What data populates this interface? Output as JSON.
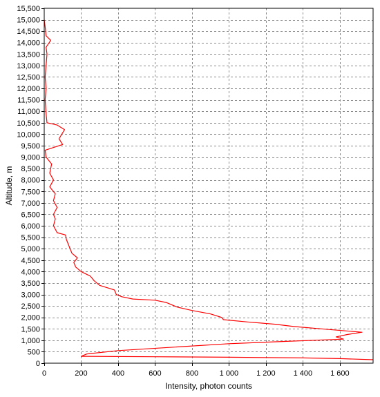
{
  "chart_data": {
    "type": "line",
    "title": "",
    "xlabel": "Intensity, photon counts",
    "ylabel": "Altitude, m",
    "xlim": [
      0,
      1780
    ],
    "ylim": [
      0,
      15500
    ],
    "x_ticks": [
      0,
      200,
      400,
      600,
      800,
      1000,
      1200,
      1400,
      1600
    ],
    "x_tick_labels": [
      "0",
      "200",
      "400",
      "600",
      "800",
      "1 000",
      "1 200",
      "1 400",
      "1 600"
    ],
    "y_ticks": [
      0,
      500,
      1000,
      1500,
      2000,
      2500,
      3000,
      3500,
      4000,
      4500,
      5000,
      5500,
      6000,
      6500,
      7000,
      7500,
      8000,
      8500,
      9000,
      9500,
      10000,
      10500,
      11000,
      11500,
      12000,
      12500,
      13000,
      13500,
      14000,
      14500,
      15000,
      15500
    ],
    "y_tick_labels": [
      "0",
      "500",
      "1,000",
      "1,500",
      "2,000",
      "2,500",
      "3,000",
      "3,500",
      "4,000",
      "4,500",
      "5,000",
      "5,500",
      "6,000",
      "6,500",
      "7,000",
      "7,500",
      "8,000",
      "8,500",
      "9,000",
      "9,500",
      "10,000",
      "10,500",
      "11,000",
      "11,500",
      "12,000",
      "12,500",
      "13,000",
      "13,500",
      "14,000",
      "14,500",
      "15,000",
      "15,500"
    ],
    "grid": true,
    "legend": "none",
    "series": [
      {
        "color": "#ff0000",
        "points": [
          [
            1780,
            150
          ],
          [
            1600,
            200
          ],
          [
            1400,
            230
          ],
          [
            1000,
            260
          ],
          [
            600,
            280
          ],
          [
            200,
            300
          ],
          [
            230,
            400
          ],
          [
            400,
            550
          ],
          [
            700,
            700
          ],
          [
            1000,
            850
          ],
          [
            1300,
            950
          ],
          [
            1620,
            1050
          ],
          [
            1580,
            1150
          ],
          [
            1640,
            1250
          ],
          [
            1720,
            1350
          ],
          [
            1500,
            1500
          ],
          [
            1350,
            1600
          ],
          [
            1250,
            1700
          ],
          [
            1100,
            1800
          ],
          [
            970,
            1900
          ],
          [
            960,
            2000
          ],
          [
            900,
            2150
          ],
          [
            800,
            2300
          ],
          [
            720,
            2450
          ],
          [
            660,
            2650
          ],
          [
            600,
            2750
          ],
          [
            480,
            2800
          ],
          [
            420,
            2900
          ],
          [
            390,
            3000
          ],
          [
            380,
            3200
          ],
          [
            300,
            3400
          ],
          [
            270,
            3600
          ],
          [
            250,
            3800
          ],
          [
            200,
            4000
          ],
          [
            170,
            4200
          ],
          [
            160,
            4400
          ],
          [
            180,
            4600
          ],
          [
            150,
            4800
          ],
          [
            140,
            5000
          ],
          [
            130,
            5200
          ],
          [
            120,
            5400
          ],
          [
            115,
            5600
          ],
          [
            70,
            5700
          ],
          [
            50,
            6000
          ],
          [
            60,
            6300
          ],
          [
            50,
            6500
          ],
          [
            70,
            6800
          ],
          [
            50,
            7100
          ],
          [
            60,
            7400
          ],
          [
            30,
            7700
          ],
          [
            50,
            8000
          ],
          [
            30,
            8300
          ],
          [
            40,
            8700
          ],
          [
            10,
            9000
          ],
          [
            5,
            9300
          ],
          [
            100,
            9550
          ],
          [
            80,
            9800
          ],
          [
            110,
            10200
          ],
          [
            70,
            10400
          ],
          [
            15,
            10500
          ],
          [
            10,
            10900
          ],
          [
            5,
            11500
          ],
          [
            10,
            12000
          ],
          [
            5,
            12500
          ],
          [
            10,
            13000
          ],
          [
            15,
            13500
          ],
          [
            10,
            13800
          ],
          [
            35,
            14100
          ],
          [
            10,
            14300
          ],
          [
            5,
            14700
          ],
          [
            0,
            15000
          ]
        ]
      }
    ]
  }
}
